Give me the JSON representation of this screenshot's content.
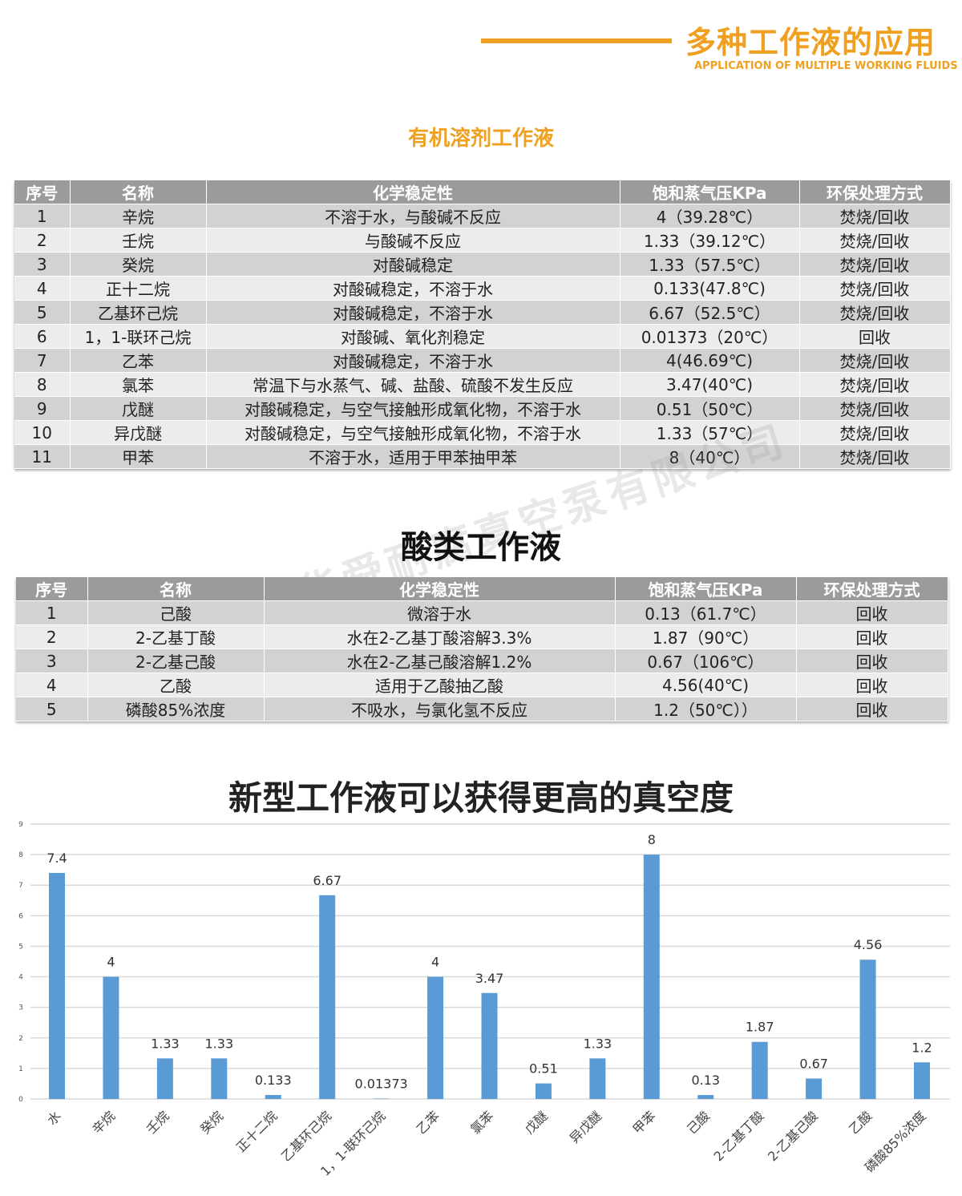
{
  "header": {
    "title": "多种工作液的应用",
    "subtitle": "APPLICATION OF MULTIPLE WORKING FLUIDS",
    "accent_color": "#f0a020"
  },
  "organic": {
    "title": "有机溶剂工作液",
    "columns": [
      "序号",
      "名称",
      "化学稳定性",
      "饱和蒸气压KPa",
      "环保处理方式"
    ],
    "rows": [
      [
        "1",
        "辛烷",
        "不溶于水，与酸碱不反应",
        "4（39.28℃）",
        "焚烧/回收"
      ],
      [
        "2",
        "壬烷",
        "与酸碱不反应",
        "1.33（39.12℃）",
        "焚烧/回收"
      ],
      [
        "3",
        "癸烷",
        "对酸碱稳定",
        "1.33（57.5℃）",
        "焚烧/回收"
      ],
      [
        "4",
        "正十二烷",
        "对酸碱稳定，不溶于水",
        "0.133(47.8℃)",
        "焚烧/回收"
      ],
      [
        "5",
        "乙基环己烷",
        "对酸碱稳定，不溶于水",
        "6.67（52.5℃）",
        "焚烧/回收"
      ],
      [
        "6",
        "1，1-联环己烷",
        "对酸碱、氧化剂稳定",
        "0.01373（20℃）",
        "回收"
      ],
      [
        "7",
        "乙苯",
        "对酸碱稳定，不溶于水",
        "4(46.69℃)",
        "焚烧/回收"
      ],
      [
        "8",
        "氯苯",
        "常温下与水蒸气、碱、盐酸、硫酸不发生反应",
        "3.47(40℃)",
        "焚烧/回收"
      ],
      [
        "9",
        "戊醚",
        "对酸碱稳定，与空气接触形成氧化物，不溶于水",
        "0.51（50℃）",
        "焚烧/回收"
      ],
      [
        "10",
        "异戊醚",
        "对酸碱稳定，与空气接触形成氧化物，不溶于水",
        "1.33（57℃）",
        "焚烧/回收"
      ],
      [
        "11",
        "甲苯",
        "不溶于水，适用于甲苯抽甲苯",
        "8（40℃）",
        "焚烧/回收"
      ]
    ]
  },
  "acid": {
    "title": "酸类工作液",
    "columns": [
      "序号",
      "名称",
      "化学稳定性",
      "饱和蒸气压KPa",
      "环保处理方式"
    ],
    "rows": [
      [
        "1",
        "己酸",
        "微溶于水",
        "0.13（61.7℃）",
        "回收"
      ],
      [
        "2",
        "2-乙基丁酸",
        "水在2-乙基丁酸溶解3.3%",
        "1.87（90℃）",
        "回收"
      ],
      [
        "3",
        "2-乙基己酸",
        "水在2-乙基己酸溶解1.2%",
        "0.67（106℃）",
        "回收"
      ],
      [
        "4",
        "乙酸",
        "适用于乙酸抽乙酸",
        "4.56(40℃)",
        "回收"
      ],
      [
        "5",
        "磷酸85%浓度",
        "不吸水，与氯化氢不反应",
        "1.2（50℃））",
        "回收"
      ]
    ]
  },
  "watermark": "淄博华舜耐腐真空泵有限公司",
  "chart_data": {
    "type": "bar",
    "title": "新型工作液可以获得更高的真空度",
    "categories": [
      "水",
      "辛烷",
      "壬烷",
      "癸烷",
      "正十二烷",
      "乙基环己烷",
      "1，1-联环己烷",
      "乙苯",
      "氯苯",
      "戊醚",
      "异戊醚",
      "甲苯",
      "己酸",
      "2-乙基丁酸",
      "2-乙基己酸",
      "乙酸",
      "磷酸85%浓度"
    ],
    "values": [
      7.4,
      4,
      1.33,
      1.33,
      0.133,
      6.67,
      0.01373,
      4,
      3.47,
      0.51,
      1.33,
      8,
      0.13,
      1.87,
      0.67,
      4.56,
      1.2
    ],
    "data_labels": [
      "7.4",
      "4",
      "1.33",
      "1.33",
      "0.133",
      "6.67",
      "0.01373",
      "4",
      "3.47",
      "0.51",
      "1.33",
      "8",
      "0.13",
      "1.87",
      "0.67",
      "4.56",
      "1.2"
    ],
    "yticks": [
      "0",
      "1",
      "2",
      "3",
      "4",
      "5",
      "6",
      "7",
      "8",
      "9"
    ],
    "ylim": [
      0,
      9
    ],
    "xlabel": "",
    "ylabel": "",
    "grid": true,
    "legend": "none",
    "bar_color": "#5b9bd5"
  }
}
